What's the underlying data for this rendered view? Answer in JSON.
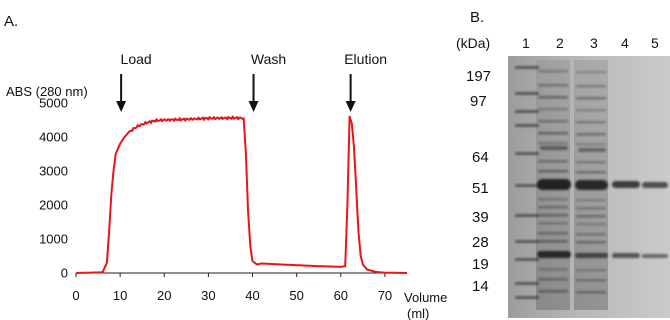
{
  "panel_a": {
    "label": "A.",
    "ylabel": "ABS (280 nm)",
    "xlabel_line1": "Volume",
    "xlabel_line2": "(ml)",
    "annotations": [
      {
        "text": "Load",
        "x": 10
      },
      {
        "text": "Wash",
        "x": 40
      },
      {
        "text": "Elution",
        "x": 62
      }
    ],
    "line_color": "#e8141b"
  },
  "panel_b": {
    "label": "B.",
    "unit_label": "(kDa)",
    "lane_labels": [
      "1",
      "2",
      "3",
      "4",
      "5"
    ],
    "marker_labels": [
      "197",
      "97",
      "64",
      "51",
      "39",
      "28",
      "19",
      "14"
    ]
  },
  "chart_data": [
    {
      "type": "line",
      "title": "",
      "xlabel": "Volume (ml)",
      "ylabel": "ABS (280 nm)",
      "xlim": [
        0,
        75
      ],
      "ylim": [
        0,
        5000
      ],
      "xticks": [
        0,
        10,
        20,
        30,
        40,
        50,
        60,
        70
      ],
      "yticks": [
        0,
        1000,
        2000,
        3000,
        4000,
        5000
      ],
      "grid": false,
      "series": [
        {
          "x": [
            0,
            6,
            7,
            7.5,
            8,
            8.5,
            9,
            10,
            11,
            12,
            14,
            16,
            18,
            20,
            25,
            30,
            35,
            37,
            38,
            38.5,
            39,
            39.5,
            40,
            41,
            42,
            45,
            50,
            55,
            58,
            60,
            61,
            61.5,
            62,
            62.5,
            63,
            63.5,
            64,
            64.5,
            65,
            66,
            68,
            70,
            75
          ],
          "y": [
            0,
            20,
            300,
            1200,
            2300,
            3000,
            3500,
            3800,
            4000,
            4150,
            4320,
            4420,
            4480,
            4500,
            4520,
            4550,
            4560,
            4560,
            4550,
            3500,
            1800,
            800,
            350,
            250,
            280,
            260,
            230,
            200,
            190,
            180,
            200,
            2000,
            4600,
            4400,
            3700,
            2500,
            1200,
            500,
            250,
            100,
            30,
            10,
            0
          ]
        }
      ]
    }
  ]
}
